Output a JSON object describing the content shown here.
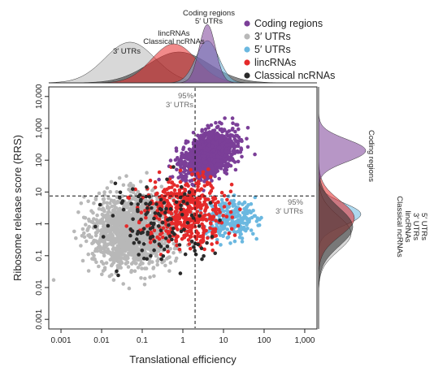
{
  "chart_data": {
    "type": "scatter",
    "xlabel": "Translational efficiency",
    "ylabel": "Ribosome release score (RRS)",
    "xscale": "log",
    "yscale": "log",
    "xlim": [
      0.0005,
      2000
    ],
    "ylim": [
      0.0005,
      20000
    ],
    "x_ticks": [
      0.001,
      0.01,
      0.1,
      1,
      10,
      100,
      1000
    ],
    "x_tick_labels": [
      "0.001",
      "0.01",
      "0.1",
      "1",
      "10",
      "100",
      "1,000"
    ],
    "y_ticks": [
      0.001,
      0.01,
      0.1,
      1,
      10,
      100,
      1000,
      10000
    ],
    "y_tick_labels": [
      "0.001",
      "0.01",
      "0.1",
      "1",
      "10",
      "100",
      "1,000",
      "10,000"
    ],
    "legend_placement": "top-right",
    "thresholds": {
      "vertical": {
        "x": 2.0,
        "label": "95%\n3′ UTRs"
      },
      "horizontal": {
        "y": 7.5,
        "label": "95%\n3′ UTRs"
      }
    },
    "top_density_labels": [
      {
        "text": "Coding regions\n5′ UTRs"
      },
      {
        "text": "lincRNAs\nClassical ncRNAs"
      },
      {
        "text": "3′ UTRs"
      }
    ],
    "right_density_labels": [
      {
        "text": "Coding regions"
      },
      {
        "text": "5′ UTRs\n3′ UTRs\nlincRNAs\nClassical ncRNAs"
      }
    ],
    "series": [
      {
        "name": "Coding regions",
        "color": "#7b3f98",
        "x_center": 4.5,
        "y_center": 150,
        "log_spread_x": 0.3,
        "log_spread_y": 0.33,
        "marginal_x_peak": 4,
        "marginal_y_peak": 200
      },
      {
        "name": "3′ UTRs",
        "color": "#b8b8b8",
        "x_center": 0.06,
        "y_center": 0.6,
        "log_spread_x": 0.5,
        "log_spread_y": 0.55,
        "marginal_x_peak": 0.05,
        "marginal_y_peak": 0.5
      },
      {
        "name": "5′ UTRs",
        "color": "#6bb8e0",
        "x_center": 15,
        "y_center": 1.5,
        "log_spread_x": 0.3,
        "log_spread_y": 0.3,
        "marginal_x_peak": 4,
        "marginal_y_peak": 2
      },
      {
        "name": "lincRNAs",
        "color": "#e52a2a",
        "x_center": 1.2,
        "y_center": 2.5,
        "log_spread_x": 0.5,
        "log_spread_y": 0.5,
        "marginal_x_peak": 0.6,
        "marginal_y_peak": 1.5
      },
      {
        "name": "Classical ncRNAs",
        "color": "#2a2a2a",
        "x_center": 0.3,
        "y_center": 1,
        "log_spread_x": 0.7,
        "log_spread_y": 0.6,
        "marginal_x_peak": 0.8,
        "marginal_y_peak": 0.8
      }
    ]
  }
}
